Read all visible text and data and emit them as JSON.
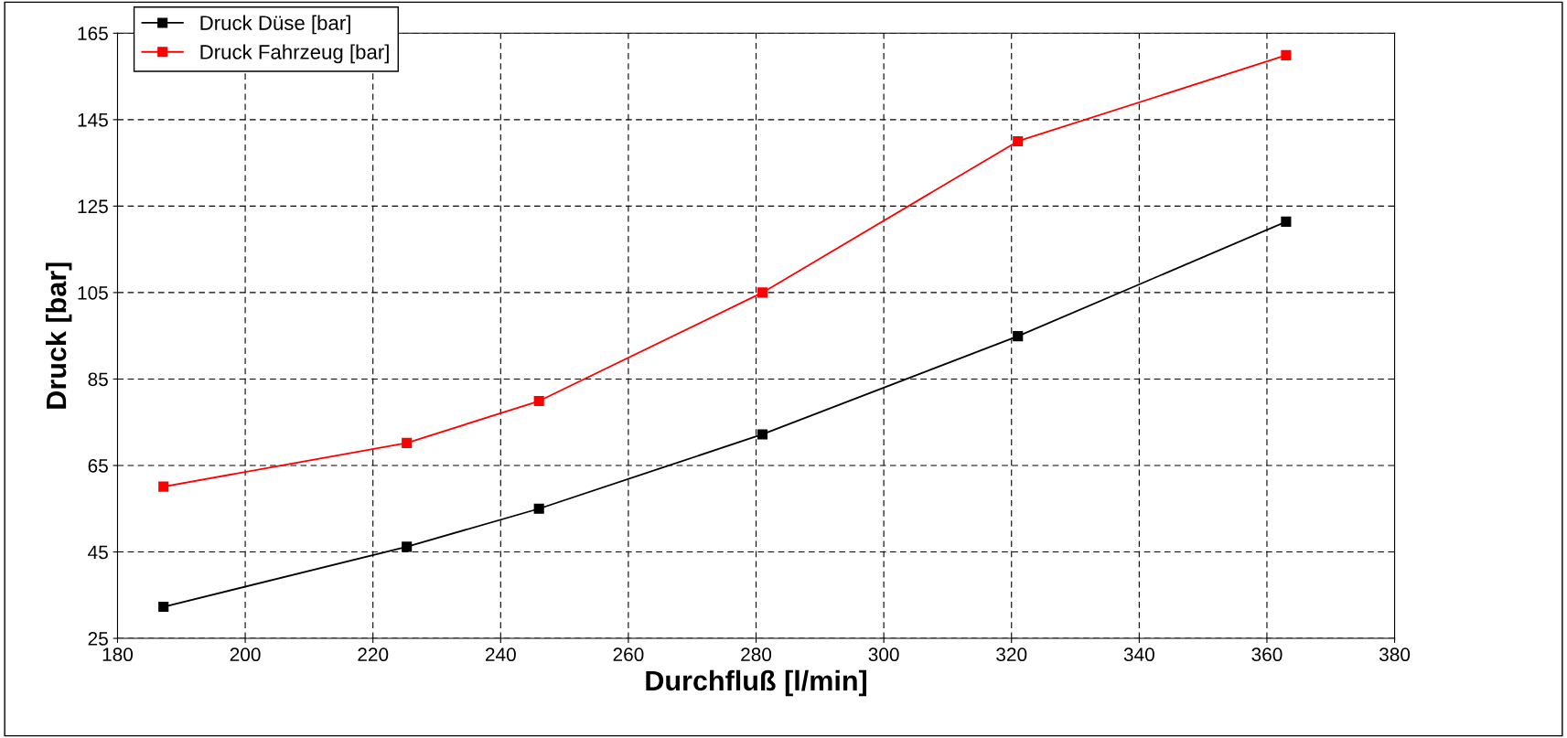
{
  "chart_data": {
    "type": "line",
    "xlabel": "Durchfluß [l/min]",
    "ylabel": "Druck [bar]",
    "xlim": [
      180,
      380
    ],
    "xticks": [
      180,
      200,
      220,
      240,
      260,
      280,
      300,
      320,
      340,
      360,
      380
    ],
    "ylim": [
      25,
      165
    ],
    "yticks": [
      25,
      45,
      65,
      85,
      105,
      125,
      145,
      165
    ],
    "grid": true,
    "legend": "top left",
    "marker": "square",
    "line_style": "solid",
    "series": [
      {
        "name": "Druck Düse [bar]",
        "color": "#000000",
        "x": [
          187.2,
          225.3,
          246.0,
          281.0,
          321.0,
          363.0
        ],
        "values": [
          32.3,
          46.2,
          55.0,
          72.2,
          94.9,
          121.4
        ]
      },
      {
        "name": "Druck Fahrzeug [bar]",
        "color": "#ff0000",
        "x": [
          187.2,
          225.3,
          246.0,
          281.0,
          321.0,
          363.0
        ],
        "values": [
          60.1,
          70.2,
          79.9,
          105.0,
          140.0,
          159.9
        ]
      }
    ]
  }
}
